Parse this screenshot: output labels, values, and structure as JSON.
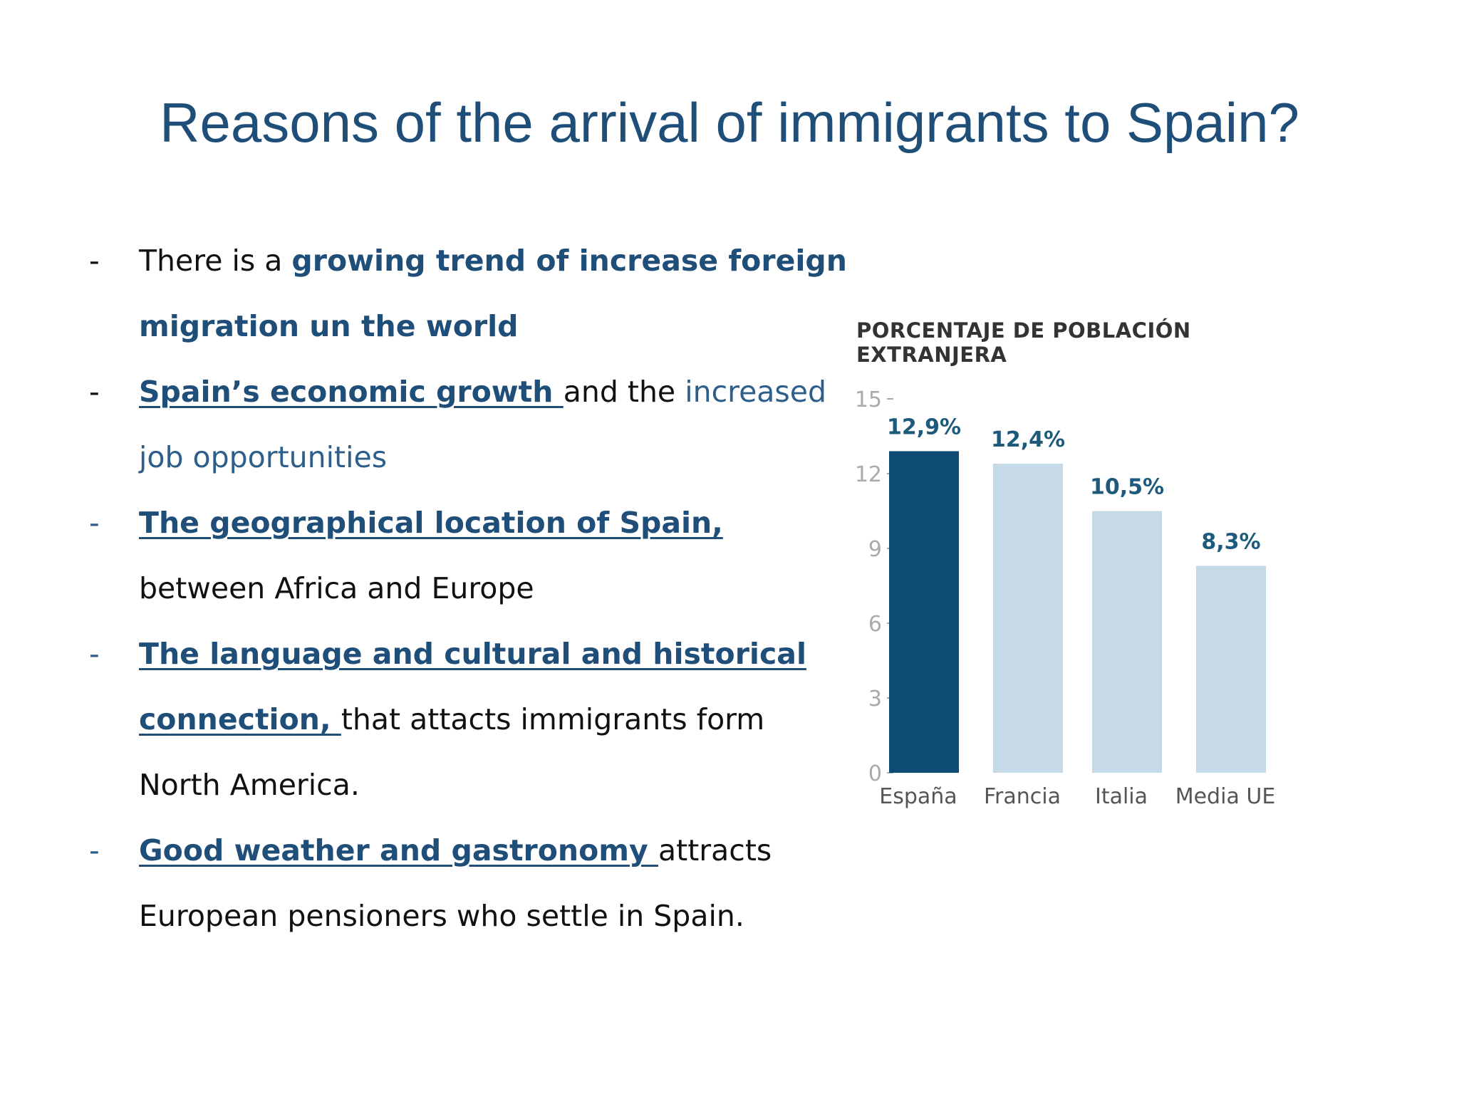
{
  "slide": {
    "title": "Reasons of the arrival of immigrants to Spain?"
  },
  "bullets": {
    "b1": {
      "pre": "There is a ",
      "em": "growing trend of increase foreign",
      "em2": "migration un the world"
    },
    "b2": {
      "em": " Spain’s economic growth ",
      "mid": "and the ",
      "hl": "increased",
      "hl2": "job opportunities"
    },
    "b3": {
      "em": "The geographical location of Spain,",
      "rest": "between Africa and Europe"
    },
    "b4": {
      "em": " The language and cultural and historical",
      "em2": "connection, ",
      "rest": "that attacts immigrants form",
      "rest2": "North America."
    },
    "b5": {
      "em": " Good weather and gastronomy ",
      "rest": "attracts",
      "rest2": "European pensioners who settle in Spain."
    },
    "dash": "-"
  },
  "chart_data": {
    "type": "bar",
    "title": "PORCENTAJE DE POBLACIÓN EXTRANJERA",
    "title_line1": "PORCENTAJE DE POBLACIÓN",
    "title_line2": "EXTRANJERA",
    "categories": [
      "España",
      "Francia",
      "Italia",
      "Media UE"
    ],
    "values": [
      12.9,
      12.4,
      10.5,
      8.3
    ],
    "data_labels": [
      "12,9%",
      "12,4%",
      "10,5%",
      "8,3%"
    ],
    "yticks": [
      0,
      3,
      6,
      9,
      12,
      15
    ],
    "ylim": [
      0,
      15
    ],
    "colors": [
      "#0f4c75",
      "#c6d9e6",
      "#c6d9e6",
      "#c6d9e6"
    ],
    "label_color": "#1d5a7c",
    "grid": false
  }
}
